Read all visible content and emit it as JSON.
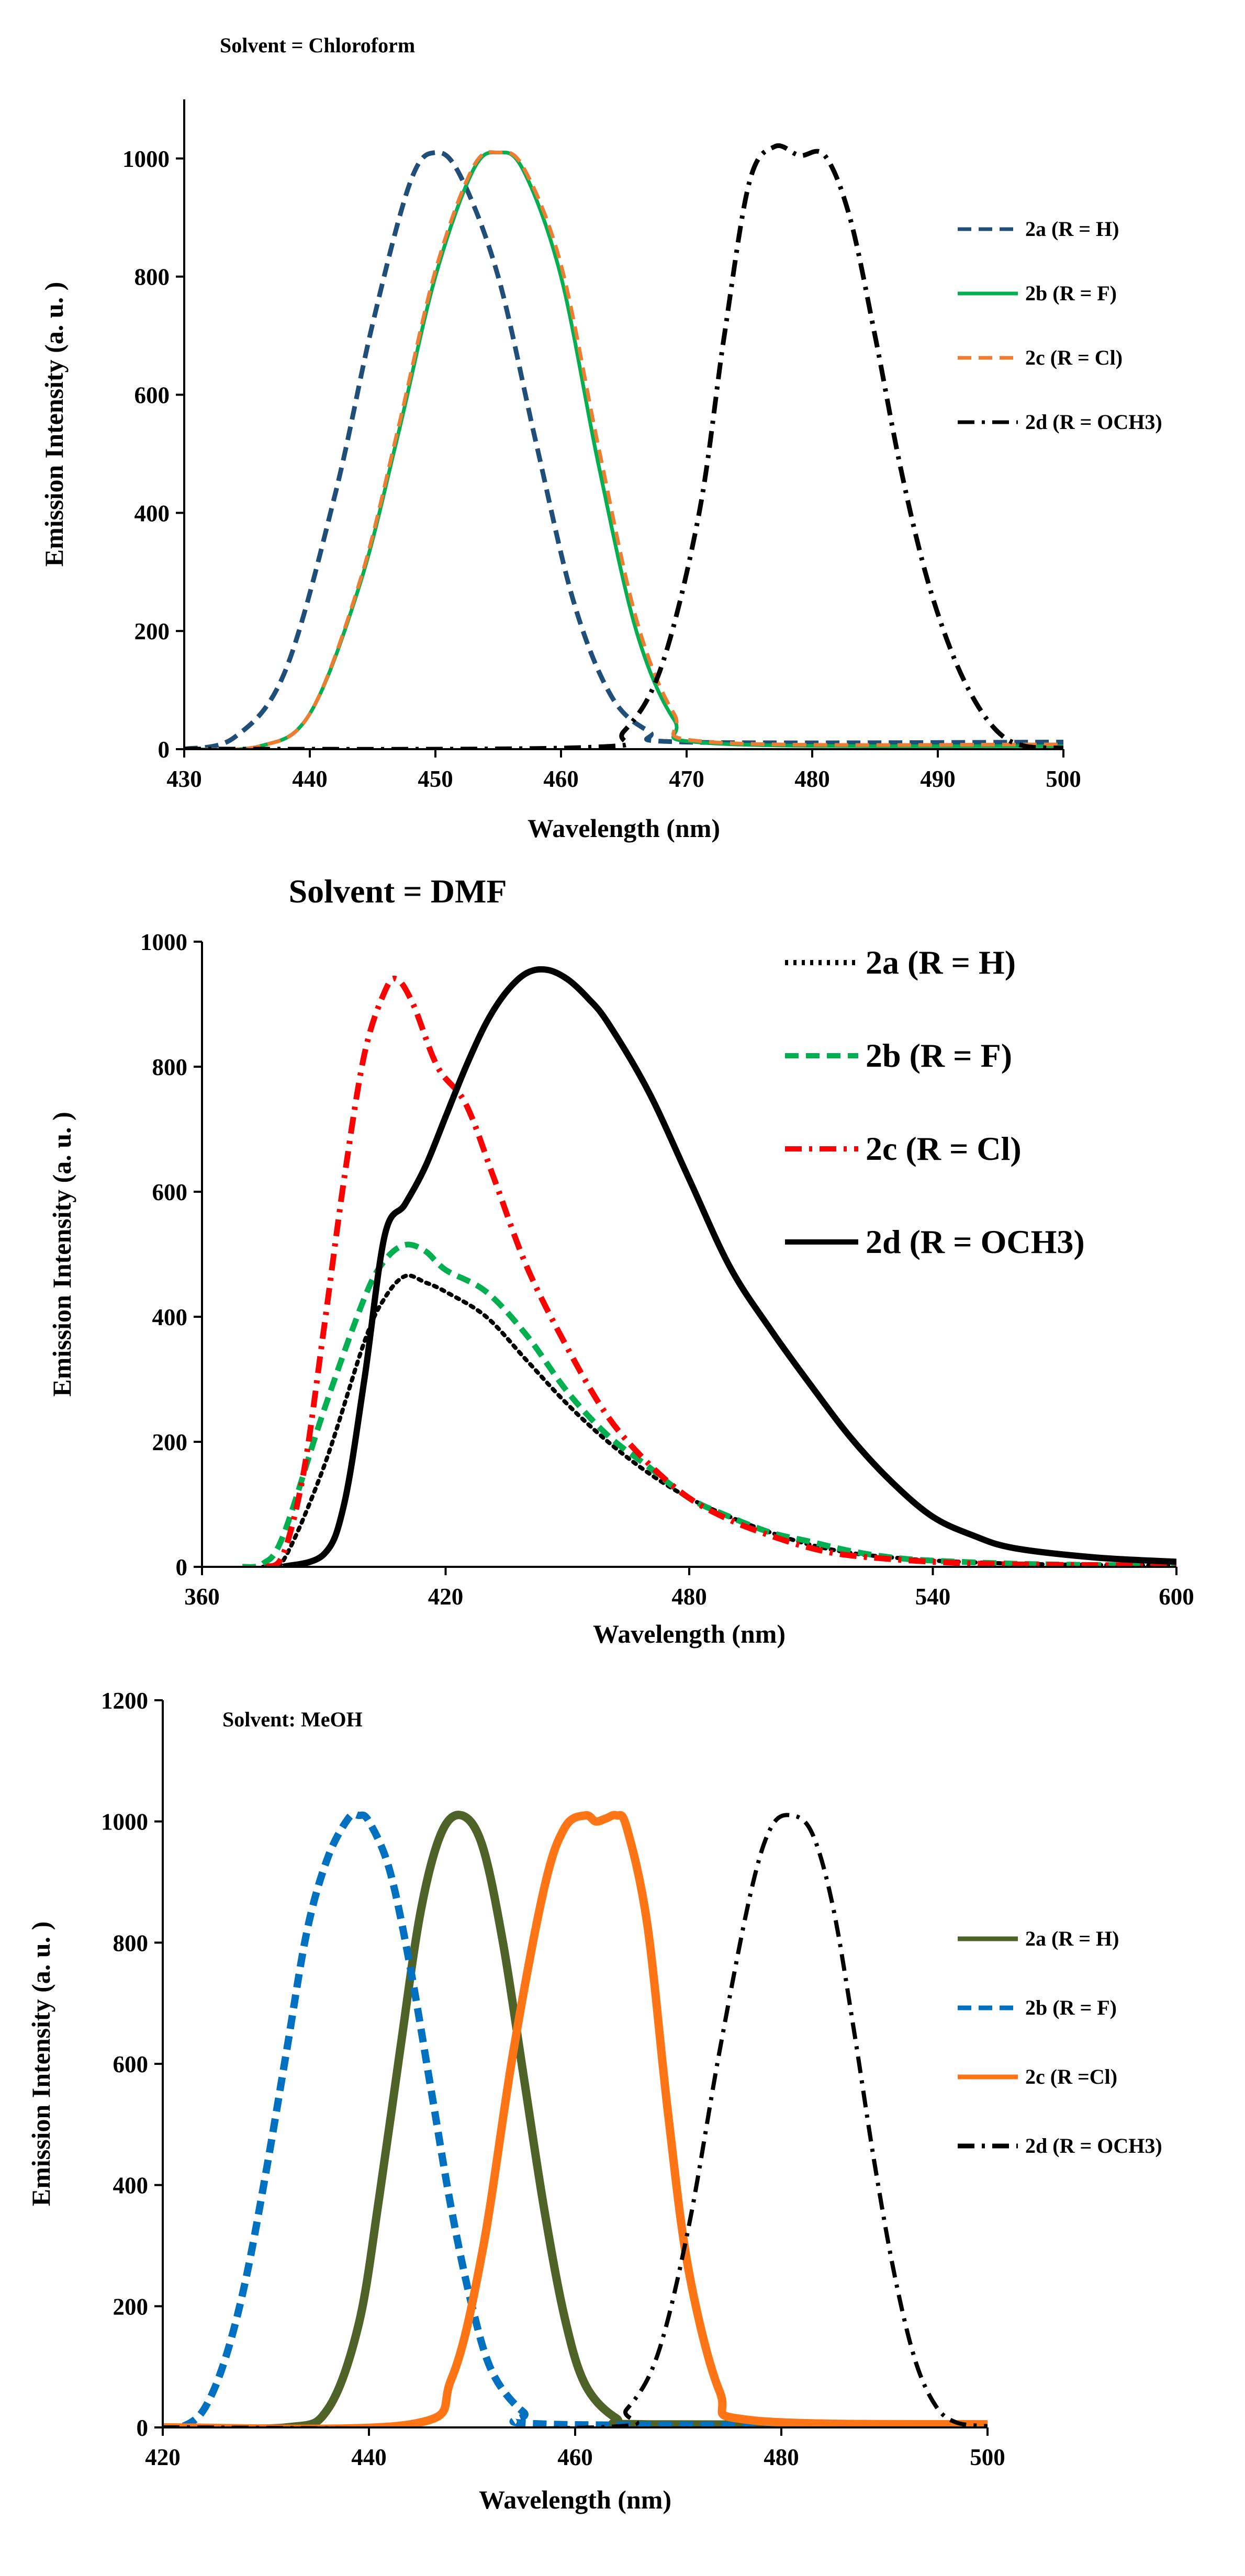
{
  "chart_data": [
    {
      "type": "line",
      "title": "Solvent = Chloroform",
      "xlabel": "Wavelength (nm)",
      "ylabel": "Emission Intensity (a. u. )",
      "xlim": [
        430,
        500
      ],
      "ylim": [
        0,
        1100
      ],
      "xticks": [
        430,
        440,
        450,
        460,
        470,
        480,
        490,
        500
      ],
      "yticks": [
        0,
        200,
        400,
        600,
        800,
        1000
      ],
      "grid": false,
      "legend_position": "right",
      "series": [
        {
          "name": "2a (R = H)",
          "color": "#1f4e79",
          "dash": "dashed",
          "x": [
            430,
            434,
            438,
            442,
            445,
            448,
            450,
            452,
            455,
            458,
            461,
            464,
            467,
            470,
            500
          ],
          "y": [
            0,
            20,
            130,
            430,
            720,
            960,
            1010,
            970,
            800,
            520,
            250,
            90,
            30,
            12,
            12
          ]
        },
        {
          "name": "2b (R = F)",
          "color": "#00b050",
          "dash": "solid",
          "x": [
            430,
            436,
            440,
            444,
            447,
            450,
            453,
            455,
            457,
            460,
            463,
            466,
            469,
            472,
            500
          ],
          "y": [
            0,
            5,
            60,
            280,
            530,
            800,
            980,
            1010,
            980,
            800,
            480,
            200,
            50,
            10,
            5
          ]
        },
        {
          "name": "2c (R = Cl)",
          "color": "#ed7d31",
          "dash": "dashed",
          "x": [
            430,
            436,
            440,
            444,
            447,
            450,
            453,
            455,
            457,
            460,
            463,
            466,
            469,
            472,
            500
          ],
          "y": [
            0,
            5,
            60,
            285,
            540,
            810,
            985,
            1010,
            985,
            820,
            510,
            220,
            60,
            12,
            8
          ]
        },
        {
          "name": "2d (R = OCH3)",
          "color": "#000000",
          "dash": "dashdot",
          "x": [
            430,
            462,
            465,
            468,
            471,
            473,
            475,
            477,
            479,
            481,
            483,
            485,
            487,
            489,
            491,
            493,
            495,
            497,
            500
          ],
          "y": [
            0,
            3,
            30,
            140,
            400,
            700,
            960,
            1020,
            1005,
            1005,
            900,
            700,
            480,
            300,
            170,
            80,
            25,
            5,
            2
          ]
        }
      ]
    },
    {
      "type": "line",
      "title": "Solvent = DMF",
      "xlabel": "Wavelength (nm)",
      "ylabel": "Emission Intensity (a. u. )",
      "xlim": [
        360,
        600
      ],
      "ylim": [
        0,
        1000
      ],
      "xticks": [
        360,
        420,
        480,
        540,
        600
      ],
      "yticks": [
        0,
        200,
        400,
        600,
        800,
        1000
      ],
      "grid": false,
      "legend_position": "top-right",
      "series": [
        {
          "name": "2a (R = H)",
          "color": "#000000",
          "dash": "dotted",
          "x": [
            375,
            380,
            390,
            400,
            405,
            410,
            415,
            420,
            430,
            440,
            450,
            460,
            470,
            480,
            490,
            500,
            510,
            520,
            530,
            540,
            560,
            580,
            600
          ],
          "y": [
            0,
            10,
            160,
            360,
            430,
            465,
            455,
            440,
            400,
            330,
            260,
            200,
            150,
            110,
            80,
            55,
            35,
            22,
            15,
            10,
            5,
            3,
            2
          ]
        },
        {
          "name": "2b (R = F)",
          "color": "#00b050",
          "dash": "dashed",
          "x": [
            370,
            375,
            380,
            390,
            400,
            405,
            410,
            415,
            420,
            430,
            440,
            450,
            460,
            470,
            480,
            490,
            500,
            510,
            520,
            530,
            540,
            560,
            580,
            600
          ],
          "y": [
            0,
            5,
            50,
            250,
            430,
            490,
            515,
            505,
            475,
            440,
            370,
            280,
            210,
            160,
            110,
            80,
            55,
            40,
            25,
            15,
            10,
            5,
            3,
            2
          ]
        },
        {
          "name": "2c (R = Cl)",
          "color": "#ff0000",
          "dash": "dashdot",
          "x": [
            376,
            380,
            385,
            390,
            395,
            400,
            405,
            408,
            412,
            418,
            425,
            432,
            440,
            450,
            460,
            470,
            480,
            490,
            500,
            510,
            520,
            540,
            560,
            600
          ],
          "y": [
            0,
            20,
            150,
            380,
            620,
            820,
            920,
            940,
            900,
            800,
            740,
            620,
            480,
            350,
            240,
            165,
            110,
            75,
            50,
            30,
            18,
            8,
            4,
            2
          ]
        },
        {
          "name": "2d (R = OCH3)",
          "color": "#000000",
          "dash": "solid",
          "x": [
            380,
            390,
            395,
            400,
            405,
            410,
            415,
            420,
            425,
            430,
            435,
            440,
            445,
            450,
            455,
            460,
            470,
            480,
            490,
            500,
            510,
            520,
            530,
            540,
            550,
            560,
            580,
            600
          ],
          "y": [
            0,
            20,
            100,
            300,
            530,
            580,
            640,
            720,
            800,
            870,
            920,
            950,
            955,
            940,
            910,
            870,
            760,
            620,
            480,
            380,
            290,
            205,
            135,
            80,
            50,
            30,
            15,
            8
          ]
        }
      ]
    },
    {
      "type": "line",
      "title": "Solvent: MeOH",
      "xlabel": "Wavelength (nm)",
      "ylabel": "Emission Intensity (a. u. )",
      "xlim": [
        420,
        500
      ],
      "ylim": [
        0,
        1200
      ],
      "xticks": [
        420,
        440,
        460,
        480,
        500
      ],
      "yticks": [
        0,
        200,
        400,
        600,
        800,
        1000,
        1200
      ],
      "grid": false,
      "legend_position": "right",
      "series": [
        {
          "name": "2a (R = H)",
          "color": "#4f6228",
          "dash": "solid",
          "x": [
            420,
            432,
            436,
            439,
            441,
            443,
            445,
            447,
            449,
            451,
            453,
            455,
            457,
            459,
            461,
            464,
            467,
            500
          ],
          "y": [
            0,
            0,
            30,
            170,
            380,
            620,
            850,
            980,
            1010,
            960,
            800,
            580,
            360,
            180,
            70,
            15,
            5,
            5
          ]
        },
        {
          "name": "2b (R = F)",
          "color": "#0070c0",
          "dash": "dashed",
          "x": [
            420,
            422,
            424,
            426,
            428,
            430,
            432,
            434,
            436,
            438,
            439,
            440,
            442,
            444,
            446,
            448,
            450,
            452,
            455,
            458,
            500
          ],
          "y": [
            0,
            2,
            30,
            110,
            240,
            420,
            620,
            820,
            940,
            1005,
            1010,
            1000,
            920,
            760,
            560,
            360,
            200,
            90,
            25,
            5,
            5
          ]
        },
        {
          "name": "2c (R =Cl)",
          "color": "#ff7515",
          "dash": "solid",
          "x": [
            420,
            444,
            448,
            451,
            454,
            457,
            459,
            461,
            462,
            463,
            464,
            465,
            467,
            469,
            471,
            474,
            477,
            500
          ],
          "y": [
            0,
            5,
            80,
            290,
            620,
            890,
            990,
            1010,
            1000,
            1005,
            1010,
            990,
            830,
            520,
            260,
            60,
            12,
            5
          ]
        },
        {
          "name": "2d (R = OCH3)",
          "color": "#000000",
          "dash": "dashdot",
          "x": [
            420,
            462,
            465,
            468,
            471,
            474,
            477,
            479,
            481,
            483,
            485,
            487,
            489,
            491,
            493,
            495,
            497,
            500
          ],
          "y": [
            0,
            0,
            30,
            120,
            330,
            620,
            880,
            990,
            1010,
            980,
            860,
            660,
            440,
            250,
            110,
            35,
            8,
            2
          ]
        }
      ]
    }
  ]
}
